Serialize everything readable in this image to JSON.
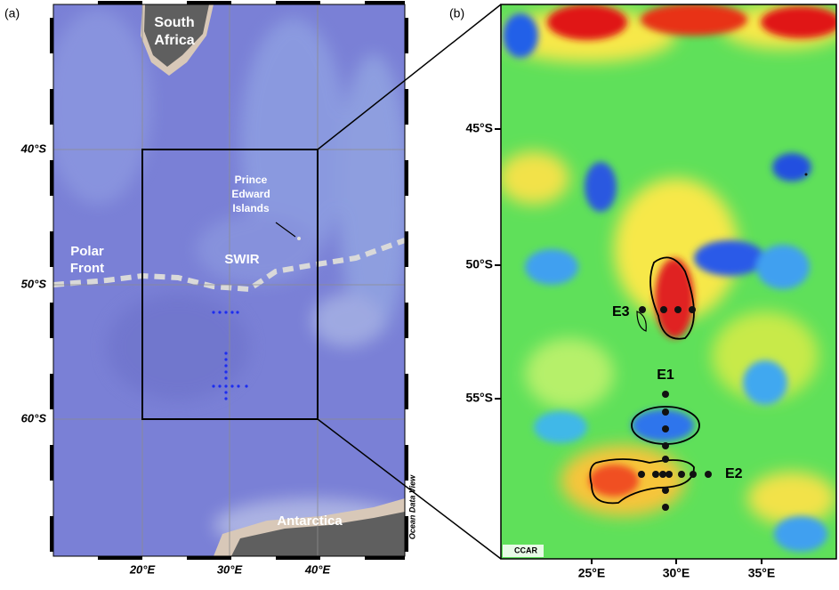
{
  "panel_a": {
    "label": "(a)",
    "south_africa": [
      "South",
      "Africa"
    ],
    "prince_edward": [
      "Prince",
      "Edward",
      "Islands"
    ],
    "polar_front": [
      "Polar",
      "Front"
    ],
    "swir": "SWIR",
    "antarctica": "Antarctica",
    "watermark": "Ocean Data View",
    "lat_labels": [
      "40°S",
      "50°S",
      "60°S"
    ],
    "lon_labels": [
      "20°E",
      "30°E",
      "40°E"
    ]
  },
  "panel_b": {
    "label": "(b)",
    "stations": [
      "E1",
      "E2",
      "E3"
    ],
    "logo": "CCAR",
    "lat_labels": [
      "45°S",
      "50°S",
      "55°S"
    ],
    "lon_labels": [
      "25°E",
      "30°E",
      "35°E"
    ]
  }
}
